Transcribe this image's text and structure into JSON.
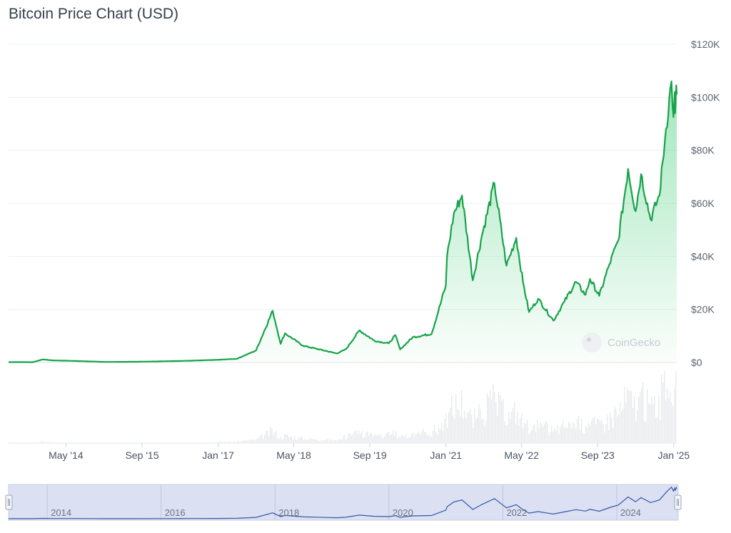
{
  "header": {
    "title": "Bitcoin Price Chart (USD)"
  },
  "watermark": "CoinGecko",
  "colors": {
    "price_line": "#16a34a",
    "area_fill": "#22c55e",
    "navigator_line": "#3556a8",
    "navigator_bg": "#dbe1f3",
    "volume": "#e8eaed"
  },
  "chart_data": {
    "type": "area",
    "title": "Bitcoin Price Chart (USD)",
    "xlabel": "",
    "ylabel": "",
    "yaxis_position": "right",
    "ylim": [
      0,
      120000
    ],
    "yticks": [
      0,
      20000,
      40000,
      60000,
      80000,
      100000,
      120000
    ],
    "ytick_labels": [
      "$0",
      "$20K",
      "$40K",
      "$60K",
      "$80K",
      "$100K",
      "$120K"
    ],
    "xlim": [
      "2013-04-28",
      "2025-01-20"
    ],
    "xticks": [
      "2014-05-01",
      "2015-09-01",
      "2017-01-01",
      "2018-05-01",
      "2019-09-01",
      "2021-01-01",
      "2022-05-01",
      "2023-09-01",
      "2025-01-01"
    ],
    "xtick_labels": [
      "May '14",
      "Sep '15",
      "Jan '17",
      "May '18",
      "Sep '19",
      "Jan '21",
      "May '22",
      "Sep '23",
      "Jan '25"
    ],
    "grid": true,
    "series": [
      {
        "values": [
          [
            "2013-04-28",
            135
          ],
          [
            "2013-10-01",
            120
          ],
          [
            "2013-12-04",
            1150
          ],
          [
            "2014-02-01",
            800
          ],
          [
            "2014-06-01",
            620
          ],
          [
            "2015-01-15",
            200
          ],
          [
            "2015-08-01",
            280
          ],
          [
            "2016-01-01",
            430
          ],
          [
            "2016-07-01",
            650
          ],
          [
            "2017-01-01",
            1000
          ],
          [
            "2017-05-01",
            1400
          ],
          [
            "2017-09-01",
            4500
          ],
          [
            "2017-12-17",
            19500
          ],
          [
            "2018-02-06",
            7000
          ],
          [
            "2018-03-05",
            11000
          ],
          [
            "2018-06-30",
            6300
          ],
          [
            "2018-11-20",
            4400
          ],
          [
            "2019-02-01",
            3400
          ],
          [
            "2019-04-01",
            5000
          ],
          [
            "2019-06-26",
            12100
          ],
          [
            "2019-09-30",
            8200
          ],
          [
            "2019-12-31",
            7200
          ],
          [
            "2020-02-12",
            10300
          ],
          [
            "2020-03-13",
            4900
          ],
          [
            "2020-06-01",
            9500
          ],
          [
            "2020-10-01",
            10800
          ],
          [
            "2020-12-31",
            29000
          ],
          [
            "2021-01-08",
            40000
          ],
          [
            "2021-02-20",
            56000
          ],
          [
            "2021-04-14",
            63000
          ],
          [
            "2021-06-22",
            31000
          ],
          [
            "2021-08-20",
            48000
          ],
          [
            "2021-11-08",
            67500
          ],
          [
            "2022-01-24",
            36500
          ],
          [
            "2022-03-28",
            47000
          ],
          [
            "2022-05-11",
            30000
          ],
          [
            "2022-06-18",
            19000
          ],
          [
            "2022-08-15",
            24000
          ],
          [
            "2022-11-21",
            15800
          ],
          [
            "2023-01-31",
            23000
          ],
          [
            "2023-04-14",
            30400
          ],
          [
            "2023-06-15",
            25500
          ],
          [
            "2023-07-14",
            31500
          ],
          [
            "2023-09-11",
            25100
          ],
          [
            "2023-11-15",
            37000
          ],
          [
            "2024-01-11",
            46000
          ],
          [
            "2024-03-14",
            73000
          ],
          [
            "2024-05-01",
            57000
          ],
          [
            "2024-06-05",
            71000
          ],
          [
            "2024-08-05",
            54000
          ],
          [
            "2024-10-01",
            63000
          ],
          [
            "2024-11-12",
            88000
          ],
          [
            "2024-12-17",
            106000
          ],
          [
            "2024-12-30",
            92500
          ],
          [
            "2025-01-07",
            102000
          ],
          [
            "2025-01-10",
            94000
          ],
          [
            "2025-01-17",
            104500
          ],
          [
            "2025-01-20",
            101000
          ]
        ]
      }
    ],
    "navigator": {
      "labels": [
        "2014",
        "2016",
        "2018",
        "2020",
        "2022",
        "2024"
      ]
    }
  }
}
